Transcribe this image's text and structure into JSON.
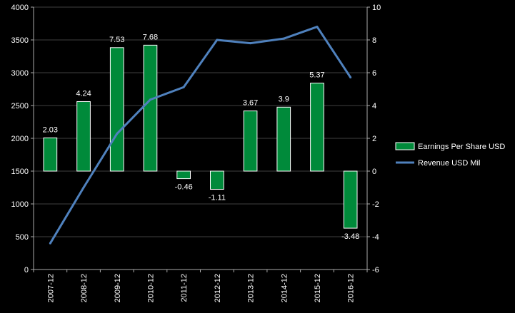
{
  "chart_data": {
    "type": "bar",
    "categories": [
      "2007-12",
      "2008-12",
      "2009-12",
      "2010-12",
      "2011-12",
      "2012-12",
      "2013-12",
      "2014-12",
      "2015-12",
      "2016-12"
    ],
    "series": [
      {
        "name": "Earnings Per Share USD",
        "type": "bar",
        "axis": "right",
        "color": "#008a3a",
        "values": [
          2.03,
          4.24,
          7.53,
          7.68,
          -0.46,
          -1.11,
          3.67,
          3.9,
          5.37,
          -3.48
        ],
        "labels": [
          "2.03",
          "4.24",
          "7.53",
          "7.68",
          "-0.46",
          "-1.11",
          "3.67",
          "3.9",
          "5.37",
          "-3.48"
        ]
      },
      {
        "name": "Revenue USD Mil",
        "type": "line",
        "axis": "left",
        "color": "#4f81bd",
        "values": [
          400,
          1250,
          2070,
          2590,
          2780,
          3500,
          3450,
          3520,
          3700,
          2930
        ]
      }
    ],
    "left_axis": {
      "ylim": [
        0,
        4000
      ],
      "ticks": [
        "0",
        "500",
        "1000",
        "1500",
        "2000",
        "2500",
        "3000",
        "3500",
        "4000"
      ]
    },
    "right_axis": {
      "ylim": [
        -6,
        10
      ],
      "ticks": [
        "-6",
        "-4",
        "-2",
        "0",
        "2",
        "4",
        "6",
        "8",
        "10"
      ]
    },
    "grid": true,
    "legend_position": "right",
    "background": "#000000",
    "gridline_color": "#404040"
  }
}
